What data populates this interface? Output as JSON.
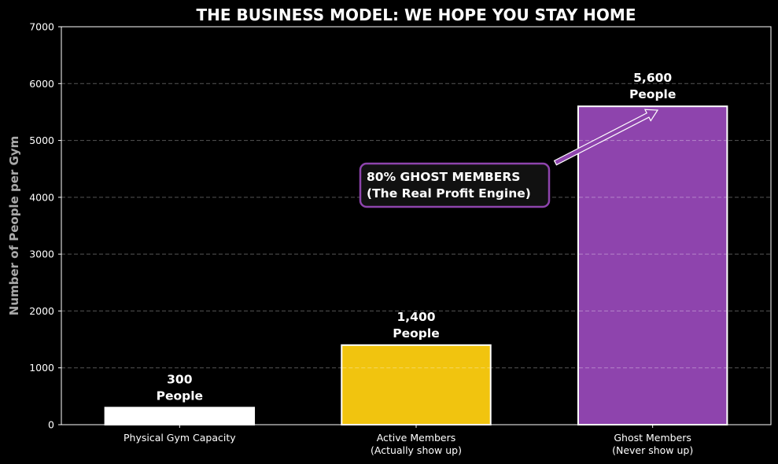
{
  "chart_data": {
    "type": "bar",
    "title": "THE BUSINESS MODEL: WE HOPE YOU STAY HOME",
    "xlabel": "",
    "ylabel": "Number of People per Gym",
    "ylim": [
      0,
      7000
    ],
    "yticks": [
      0,
      1000,
      2000,
      3000,
      4000,
      5000,
      6000,
      7000
    ],
    "grid": {
      "axis": "y",
      "style": "dashed"
    },
    "categories": [
      [
        "Physical Gym Capacity"
      ],
      [
        "Active Members",
        "(Actually show up)"
      ],
      [
        "Ghost Members",
        "(Never show up)"
      ]
    ],
    "values": [
      300,
      1400,
      5600
    ],
    "bar_labels": [
      [
        "300",
        "People"
      ],
      [
        "1,400",
        "People"
      ],
      [
        "5,600",
        "People"
      ]
    ],
    "colors": [
      "#ffffff",
      "#f1c40f",
      "#8e44ad"
    ],
    "annotation": {
      "lines": [
        "80% GHOST MEMBERS",
        "(The Real Profit Engine)"
      ],
      "box_border_color": "#8e44ad",
      "box_fill_color": "#111111",
      "arrow_color": "#8e44ad",
      "arrow_target": {
        "category": "Ghost Members",
        "value": 5600
      }
    },
    "background": "#000000"
  }
}
